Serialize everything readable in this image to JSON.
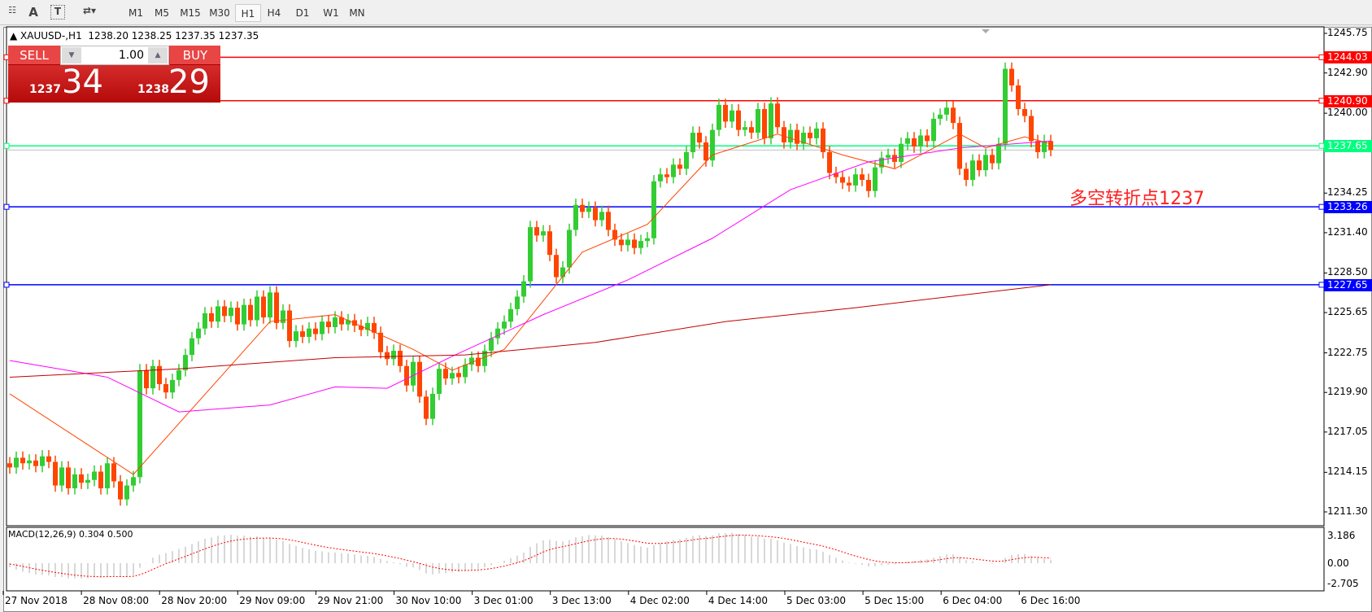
{
  "toolbar": {
    "icons": [
      "period-separator-icon",
      "text-a-icon",
      "text-label-icon",
      "arrows-icon"
    ],
    "timeframes": [
      "M1",
      "M5",
      "M15",
      "M30",
      "H1",
      "H4",
      "D1",
      "W1",
      "MN"
    ],
    "active": "H1"
  },
  "chart": {
    "title": "XAUUSD-,H1",
    "ohlc": "1238.20 1238.25 1237.35 1237.35"
  },
  "trade": {
    "sell": "SELL",
    "buy": "BUY",
    "lot": "1.00",
    "sell_big": "1237",
    "sell_pips": "34",
    "buy_big": "1238",
    "buy_pips": "29"
  },
  "annotation": "多空转折点1237",
  "colors": {
    "bull": "#32cd32",
    "bear": "#ff4500",
    "resistance": "#ff0000",
    "support": "#0000ff",
    "pivot": "#00ff7f",
    "ma_fast": "#ff4500",
    "ma_mid": "#ff00ff",
    "ma_slow": "#c00000"
  },
  "chart_data": {
    "type": "candlestick",
    "price_ticks": [
      "1245.75",
      "1242.90",
      "1240.00",
      "1234.25",
      "1231.40",
      "1228.50",
      "1225.65",
      "1222.75",
      "1219.90",
      "1217.05",
      "1214.15",
      "1211.30"
    ],
    "ylim": [
      1211.3,
      1245.75
    ],
    "time_labels": [
      "27 Nov 2018",
      "28 Nov 08:00",
      "28 Nov 20:00",
      "29 Nov 09:00",
      "29 Nov 21:00",
      "30 Nov 10:00",
      "3 Dec 01:00",
      "3 Dec 13:00",
      "4 Dec 02:00",
      "4 Dec 14:00",
      "5 Dec 03:00",
      "5 Dec 15:00",
      "6 Dec 04:00",
      "6 Dec 16:00"
    ],
    "hlines": [
      {
        "value": "1244.03",
        "color": "#ff0000"
      },
      {
        "value": "1240.90",
        "color": "#ff0000"
      },
      {
        "value": "1237.65",
        "color": "#00ff7f"
      },
      {
        "value": "1233.26",
        "color": "#0000ff"
      },
      {
        "value": "1227.65",
        "color": "#0000ff"
      }
    ],
    "bid": 1237.35,
    "close": [
      1214.5,
      1215.2,
      1214.8,
      1215.0,
      1214.6,
      1215.3,
      1214.9,
      1213.2,
      1214.5,
      1213.0,
      1214.0,
      1213.4,
      1213.6,
      1214.2,
      1213.0,
      1214.8,
      1213.5,
      1212.2,
      1213.2,
      1213.8,
      1221.5,
      1220.2,
      1221.8,
      1220.5,
      1219.9,
      1220.8,
      1221.5,
      1222.6,
      1223.8,
      1224.5,
      1225.6,
      1225.0,
      1226.1,
      1225.4,
      1226.0,
      1224.8,
      1226.2,
      1225.1,
      1226.8,
      1225.3,
      1227.1,
      1224.9,
      1225.8,
      1223.6,
      1224.3,
      1223.9,
      1224.5,
      1224.1,
      1225.0,
      1224.6,
      1225.3,
      1224.8,
      1225.1,
      1224.7,
      1224.4,
      1224.9,
      1224.2,
      1222.8,
      1222.3,
      1222.9,
      1221.8,
      1220.4,
      1222.1,
      1219.6,
      1218.0,
      1219.8,
      1221.6,
      1220.9,
      1221.3,
      1221.0,
      1221.9,
      1222.4,
      1221.8,
      1222.9,
      1223.8,
      1224.5,
      1225.0,
      1225.9,
      1226.8,
      1227.9,
      1231.8,
      1231.2,
      1231.5,
      1229.8,
      1228.2,
      1228.9,
      1231.6,
      1233.4,
      1232.9,
      1233.2,
      1232.3,
      1232.9,
      1231.6,
      1230.9,
      1230.5,
      1230.9,
      1230.3,
      1230.8,
      1231.0,
      1235.1,
      1235.6,
      1235.4,
      1236.3,
      1236.0,
      1237.2,
      1238.6,
      1237.9,
      1236.6,
      1238.8,
      1240.6,
      1239.4,
      1240.2,
      1238.8,
      1239.0,
      1238.6,
      1240.3,
      1238.2,
      1240.7,
      1239.0,
      1237.9,
      1238.8,
      1237.8,
      1238.6,
      1238.2,
      1238.9,
      1237.2,
      1235.7,
      1235.4,
      1235.0,
      1234.8,
      1235.6,
      1235.2,
      1234.4,
      1236.1,
      1236.8,
      1237.0,
      1236.5,
      1237.8,
      1238.2,
      1237.6,
      1238.4,
      1238.0,
      1239.6,
      1239.9,
      1240.4,
      1239.3,
      1236.0,
      1235.2,
      1236.6,
      1235.9,
      1237.0,
      1236.4,
      1237.8,
      1243.2,
      1242.0,
      1240.3,
      1239.8,
      1238.0,
      1237.2,
      1238.0,
      1237.35
    ],
    "ma_fast": [
      [
        0,
        1219.8
      ],
      [
        19,
        1214
      ],
      [
        40,
        1225
      ],
      [
        50,
        1225.5
      ],
      [
        62,
        1223
      ],
      [
        68,
        1221.5
      ],
      [
        76,
        1223
      ],
      [
        88,
        1230
      ],
      [
        98,
        1232
      ],
      [
        108,
        1237
      ],
      [
        118,
        1238.5
      ],
      [
        128,
        1237
      ],
      [
        136,
        1236
      ],
      [
        146,
        1238.5
      ],
      [
        150,
        1237.5
      ],
      [
        156,
        1238.3
      ],
      [
        160,
        1237.8
      ]
    ],
    "ma_mid": [
      [
        0,
        1222.2
      ],
      [
        15,
        1221
      ],
      [
        26,
        1218.5
      ],
      [
        40,
        1219
      ],
      [
        50,
        1220.3
      ],
      [
        58,
        1220.2
      ],
      [
        68,
        1222.5
      ],
      [
        82,
        1225.5
      ],
      [
        95,
        1228
      ],
      [
        108,
        1231
      ],
      [
        120,
        1234.5
      ],
      [
        132,
        1236.5
      ],
      [
        146,
        1237.5
      ],
      [
        160,
        1238
      ]
    ],
    "ma_slow": [
      [
        0,
        1221
      ],
      [
        26,
        1221.6
      ],
      [
        50,
        1222.4
      ],
      [
        70,
        1222.6
      ],
      [
        90,
        1223.5
      ],
      [
        110,
        1225
      ],
      [
        130,
        1226
      ],
      [
        160,
        1227.65
      ]
    ],
    "macd": {
      "label": "MACD(12,26,9) 0.304 0.500",
      "ticks": [
        "3.186",
        "0.00",
        "-2.705"
      ],
      "ylim": [
        -2.705,
        3.186
      ]
    }
  }
}
